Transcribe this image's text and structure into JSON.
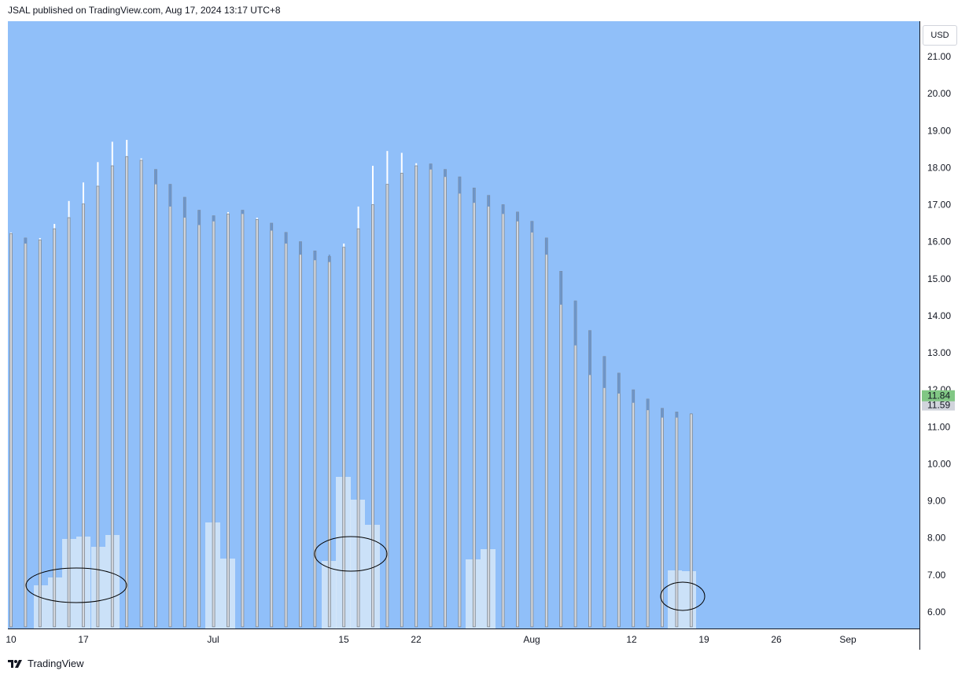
{
  "header": {
    "published": "JSAL published on TradingView.com, Aug 17, 2024 13:17 UTC+8"
  },
  "price_axis": {
    "currency": "USD",
    "ticks": [
      "21.00",
      "20.00",
      "19.00",
      "18.00",
      "17.00",
      "16.00",
      "15.00",
      "14.00",
      "13.00",
      "12.00",
      "11.00",
      "10.00",
      "9.00",
      "8.00",
      "7.00",
      "6.00"
    ],
    "last_price_label": "11.84",
    "last_price_color": "#81c784",
    "prev_close_label": "11.59",
    "prev_close_color": "#d1d4dc"
  },
  "time_axis": {
    "labels": [
      "10",
      "17",
      "Jul",
      "15",
      "22",
      "Aug",
      "12",
      "19",
      "26",
      "Sep"
    ]
  },
  "footer": {
    "brand": "TradingView",
    "logo_icon": "tradingview-logo-icon"
  },
  "colors": {
    "background": "#90bff9",
    "up_wick": "#ffffff",
    "down_wick": "#6d95c9",
    "candle_body": "#d3d7de",
    "volume": "#d6e6f8",
    "annotation": "#000000"
  },
  "chart_data": {
    "type": "candlestick",
    "y_range": [
      5.55,
      21.9
    ],
    "annotations": [
      "ellipse",
      "ellipse",
      "ellipse"
    ],
    "candles": [
      {
        "x": "Jun 10",
        "open": 16.22,
        "close": 16.22,
        "high": 16.25,
        "low": 5.6
      },
      {
        "x": "Jun 11",
        "open": 16.1,
        "close": 15.95,
        "high": 16.1,
        "low": 5.6
      },
      {
        "x": "Jun 12",
        "open": 16.0,
        "close": 16.05,
        "high": 16.1,
        "low": 5.6
      },
      {
        "x": "Jun 13",
        "open": 16.35,
        "close": 16.35,
        "high": 16.48,
        "low": 5.6
      },
      {
        "x": "Jun 14",
        "open": 16.65,
        "close": 16.65,
        "high": 17.1,
        "low": 5.6
      },
      {
        "x": "Jun 17",
        "open": 17.0,
        "close": 17.02,
        "high": 17.6,
        "low": 5.6
      },
      {
        "x": "Jun 18",
        "open": 17.5,
        "close": 17.5,
        "high": 18.15,
        "low": 5.6
      },
      {
        "x": "Jun 19",
        "open": 18.05,
        "close": 18.05,
        "high": 18.7,
        "low": 5.6
      },
      {
        "x": "Jun 20",
        "open": 18.3,
        "close": 18.3,
        "high": 18.75,
        "low": 5.6
      },
      {
        "x": "Jun 21",
        "open": 18.2,
        "close": 18.2,
        "high": 18.25,
        "low": 5.6
      },
      {
        "x": "Jun 24",
        "open": 17.95,
        "close": 17.55,
        "high": 17.95,
        "low": 5.6
      },
      {
        "x": "Jun 25",
        "open": 17.55,
        "close": 16.95,
        "high": 17.55,
        "low": 5.6
      },
      {
        "x": "Jun 26",
        "open": 17.2,
        "close": 16.65,
        "high": 17.2,
        "low": 5.6
      },
      {
        "x": "Jun 27",
        "open": 16.85,
        "close": 16.45,
        "high": 16.85,
        "low": 5.6
      },
      {
        "x": "Jun 28",
        "open": 16.7,
        "close": 16.55,
        "high": 16.7,
        "low": 5.6
      },
      {
        "x": "Jul 1",
        "open": 16.75,
        "close": 16.75,
        "high": 16.8,
        "low": 5.6
      },
      {
        "x": "Jul 2",
        "open": 16.85,
        "close": 16.75,
        "high": 16.85,
        "low": 5.6
      },
      {
        "x": "Jul 3",
        "open": 16.6,
        "close": 16.6,
        "high": 16.65,
        "low": 5.6
      },
      {
        "x": "Jul 4",
        "open": 16.5,
        "close": 16.3,
        "high": 16.5,
        "low": 5.6
      },
      {
        "x": "Jul 5",
        "open": 16.25,
        "close": 15.95,
        "high": 16.25,
        "low": 5.6
      },
      {
        "x": "Jul 8",
        "open": 16.0,
        "close": 15.65,
        "high": 16.0,
        "low": 5.6
      },
      {
        "x": "Jul 9",
        "open": 15.75,
        "close": 15.5,
        "high": 15.75,
        "low": 5.6
      },
      {
        "x": "Jul 10",
        "open": 15.6,
        "close": 15.45,
        "high": 15.65,
        "low": 5.6
      },
      {
        "x": "Jul 11",
        "open": 15.85,
        "close": 15.85,
        "high": 15.95,
        "low": 5.6
      },
      {
        "x": "Jul 12",
        "open": 16.35,
        "close": 16.35,
        "high": 16.95,
        "low": 5.6
      },
      {
        "x": "Jul 15",
        "open": 17.0,
        "close": 17.0,
        "high": 18.05,
        "low": 5.6
      },
      {
        "x": "Jul 16",
        "open": 17.55,
        "close": 17.55,
        "high": 18.45,
        "low": 5.6
      },
      {
        "x": "Jul 17",
        "open": 17.85,
        "close": 17.85,
        "high": 18.4,
        "low": 5.6
      },
      {
        "x": "Jul 18",
        "open": 18.05,
        "close": 18.05,
        "high": 18.12,
        "low": 5.6
      },
      {
        "x": "Jul 19",
        "open": 18.1,
        "close": 17.95,
        "high": 18.1,
        "low": 5.6
      },
      {
        "x": "Jul 22",
        "open": 17.95,
        "close": 17.75,
        "high": 17.95,
        "low": 5.6
      },
      {
        "x": "Jul 23",
        "open": 17.75,
        "close": 17.3,
        "high": 17.75,
        "low": 5.6
      },
      {
        "x": "Jul 24",
        "open": 17.45,
        "close": 17.05,
        "high": 17.45,
        "low": 5.6
      },
      {
        "x": "Jul 25",
        "open": 17.25,
        "close": 16.95,
        "high": 17.25,
        "low": 5.6
      },
      {
        "x": "Jul 26",
        "open": 17.0,
        "close": 16.75,
        "high": 17.0,
        "low": 5.6
      },
      {
        "x": "Jul 29",
        "open": 16.8,
        "close": 16.55,
        "high": 16.8,
        "low": 5.6
      },
      {
        "x": "Jul 30",
        "open": 16.55,
        "close": 16.25,
        "high": 16.55,
        "low": 5.6
      },
      {
        "x": "Jul 31",
        "open": 16.1,
        "close": 15.65,
        "high": 16.1,
        "low": 5.6
      },
      {
        "x": "Aug 1",
        "open": 15.2,
        "close": 14.3,
        "high": 15.2,
        "low": 5.6
      },
      {
        "x": "Aug 2",
        "open": 14.4,
        "close": 13.2,
        "high": 14.4,
        "low": 5.6
      },
      {
        "x": "Aug 5",
        "open": 13.6,
        "close": 12.4,
        "high": 13.6,
        "low": 5.6
      },
      {
        "x": "Aug 6",
        "open": 12.9,
        "close": 12.05,
        "high": 12.9,
        "low": 5.6
      },
      {
        "x": "Aug 7",
        "open": 12.45,
        "close": 11.9,
        "high": 12.45,
        "low": 5.6
      },
      {
        "x": "Aug 8",
        "open": 12.0,
        "close": 11.65,
        "high": 12.0,
        "low": 5.6
      },
      {
        "x": "Aug 9",
        "open": 11.75,
        "close": 11.45,
        "high": 11.75,
        "low": 5.6
      },
      {
        "x": "Aug 12",
        "open": 11.5,
        "close": 11.25,
        "high": 11.5,
        "low": 5.6
      },
      {
        "x": "Aug 13",
        "open": 11.4,
        "close": 11.25,
        "high": 11.4,
        "low": 5.6
      },
      {
        "x": "Aug 14",
        "open": 11.35,
        "close": 11.35,
        "high": 11.35,
        "low": 5.6
      }
    ]
  }
}
